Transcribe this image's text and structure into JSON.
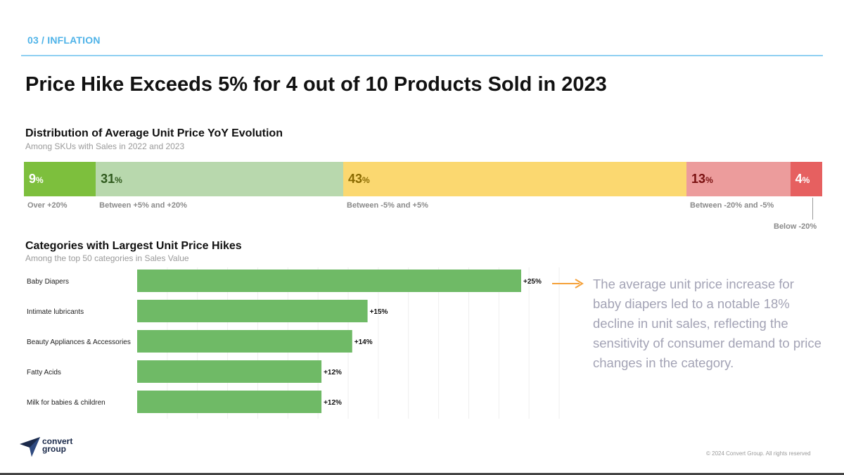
{
  "header": {
    "section": "03 / INFLATION",
    "title": "Price Hike Exceeds 5% for 4 out of 10 Products Sold in 2023"
  },
  "distribution": {
    "title": "Distribution of Average Unit Price YoY Evolution",
    "subtitle": "Among SKUs with Sales in 2022 and 2023"
  },
  "hikes": {
    "title": "Categories with Largest Unit Price Hikes",
    "subtitle": "Among the top 50 categories in Sales Value"
  },
  "insight": {
    "text": "The average unit price increase for baby diapers led to a notable 18% decline in unit sales, reflecting the sensitivity of consumer demand to price changes in the category."
  },
  "footer": {
    "logo_line1": "convert",
    "logo_line2": "group",
    "copyright": "© 2024 Convert Group. All rights reserved"
  },
  "chart_data": [
    {
      "type": "bar",
      "orientation": "horizontal-stacked-100",
      "title": "Distribution of Average Unit Price YoY Evolution",
      "subtitle": "Among SKUs with Sales in 2022 and 2023",
      "unit": "%",
      "series": [
        {
          "name": "Over +20%",
          "value": 9,
          "color": "#7dbf3d",
          "text_color": "#ffffff"
        },
        {
          "name": "Between +5% and +20%",
          "value": 31,
          "color": "#b8d8ad",
          "text_color": "#2f5a1d"
        },
        {
          "name": "Between -5% and +5%",
          "value": 43,
          "color": "#fbd870",
          "text_color": "#8a6a00"
        },
        {
          "name": "Between -20% and -5%",
          "value": 13,
          "color": "#ec9c9c",
          "text_color": "#7a1010"
        },
        {
          "name": "Below -20%",
          "value": 4,
          "color": "#e66060",
          "text_color": "#ffffff"
        }
      ]
    },
    {
      "type": "bar",
      "orientation": "horizontal",
      "title": "Categories with Largest Unit Price Hikes",
      "subtitle": "Among the top 50 categories in Sales Value",
      "categories": [
        "Baby Diapers",
        "Intimate lubricants",
        "Beauty Appliances & Accessories",
        "Fatty Acids",
        "Milk for babies & children"
      ],
      "values": [
        25,
        15,
        14,
        12,
        12
      ],
      "value_labels": [
        "+25%",
        "+15%",
        "+14%",
        "+12%",
        "+12%"
      ],
      "bar_color": "#6fba66",
      "grid": true,
      "xlim": [
        0,
        28
      ]
    }
  ]
}
